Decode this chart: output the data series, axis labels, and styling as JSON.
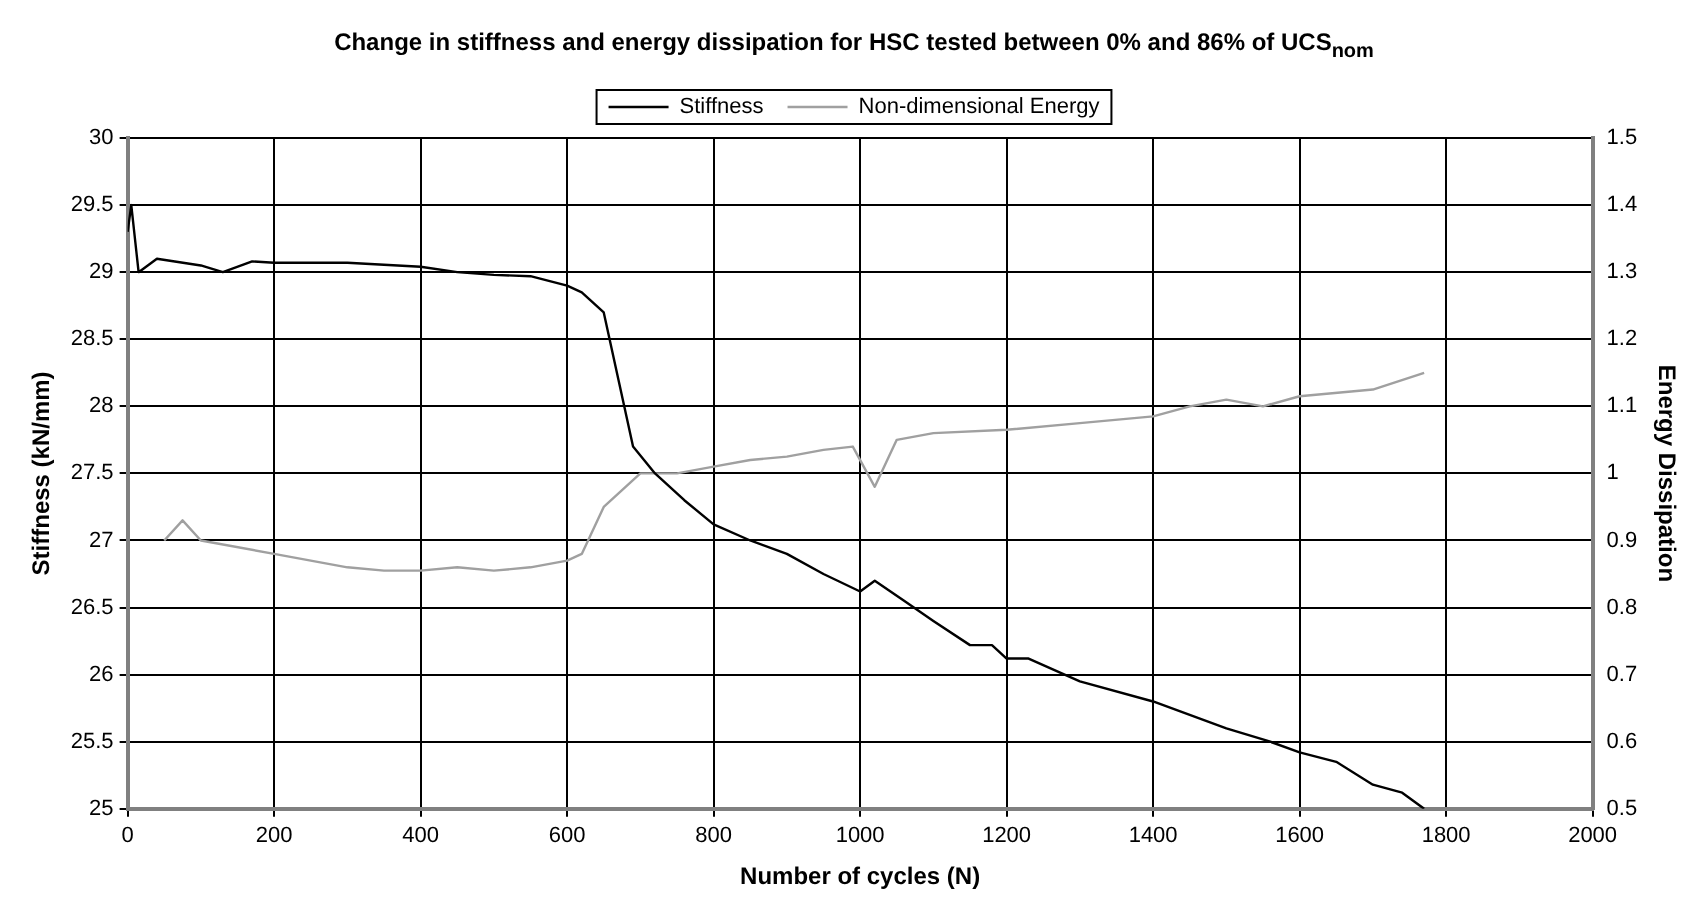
{
  "chart_data": {
    "type": "line",
    "title": "Change in stiffness and energy dissipation for HSC tested between 0% and 86% of UCS$_{nom}$",
    "xlabel": "Number of cycles (N)",
    "ylabel": "Stiffness (kN/mm)",
    "y2label": "Energy Dissipation",
    "xlim": [
      0,
      2000
    ],
    "xticks": [
      0,
      200,
      400,
      600,
      800,
      1000,
      1200,
      1400,
      1600,
      1800,
      2000
    ],
    "ylim": [
      25,
      30
    ],
    "yticks": [
      25,
      25.5,
      26,
      26.5,
      27,
      27.5,
      28,
      28.5,
      29,
      29.5,
      30
    ],
    "y2lim": [
      0.5,
      1.5
    ],
    "y2ticks": [
      0.5,
      0.6,
      0.7,
      0.8,
      0.9,
      1,
      1.1,
      1.2,
      1.3,
      1.4,
      1.5
    ],
    "grid": true,
    "legend": "top",
    "marker": "none",
    "line_style": "solid",
    "series": [
      {
        "name": "Stiffness",
        "color": "#000000",
        "x": [
          0,
          5,
          15,
          40,
          100,
          130,
          170,
          200,
          300,
          400,
          450,
          500,
          550,
          600,
          620,
          650,
          670,
          690,
          720,
          760,
          800,
          850,
          900,
          950,
          1000,
          1020,
          1060,
          1100,
          1150,
          1180,
          1200,
          1230,
          1300,
          1400,
          1450,
          1500,
          1560,
          1600,
          1650,
          1700,
          1740,
          1770
        ],
        "values": [
          29.3,
          29.5,
          29.0,
          29.1,
          29.05,
          29.0,
          29.08,
          29.07,
          29.07,
          29.04,
          29.0,
          28.98,
          28.97,
          28.9,
          28.85,
          28.7,
          28.2,
          27.7,
          27.5,
          27.3,
          27.12,
          27.0,
          26.9,
          26.75,
          26.62,
          26.7,
          26.55,
          26.4,
          26.22,
          26.22,
          26.12,
          26.12,
          25.95,
          25.8,
          25.7,
          25.6,
          25.5,
          25.42,
          25.35,
          25.18,
          25.12,
          25.0
        ]
      },
      {
        "name": "Non-dimensional Energy",
        "color": "#a0a0a0",
        "axis": "y2",
        "x": [
          50,
          75,
          100,
          200,
          300,
          350,
          400,
          450,
          500,
          550,
          600,
          620,
          650,
          700,
          750,
          800,
          850,
          900,
          950,
          990,
          1020,
          1050,
          1100,
          1200,
          1300,
          1400,
          1450,
          1500,
          1550,
          1600,
          1700,
          1770
        ],
        "values": [
          0.9,
          0.93,
          0.9,
          0.88,
          0.86,
          0.855,
          0.855,
          0.86,
          0.855,
          0.86,
          0.87,
          0.88,
          0.95,
          1.0,
          1.0,
          1.01,
          1.02,
          1.025,
          1.035,
          1.04,
          0.98,
          1.05,
          1.06,
          1.065,
          1.075,
          1.085,
          1.1,
          1.11,
          1.1,
          1.115,
          1.125,
          1.15
        ]
      }
    ]
  }
}
